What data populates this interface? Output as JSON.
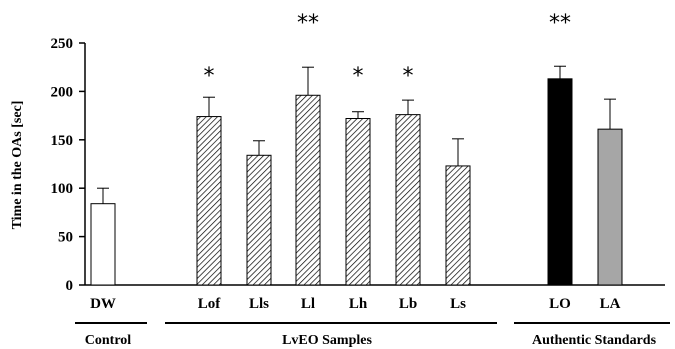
{
  "chart_data": {
    "type": "bar",
    "ylabel": "Time in the OAs [sec]",
    "ylim": [
      0,
      250
    ],
    "yticks": [
      0,
      50,
      100,
      150,
      200,
      250
    ],
    "grid": false,
    "categories": [
      "DW",
      "Lof",
      "Lls",
      "Ll",
      "Lh",
      "Lb",
      "Ls",
      "LO",
      "LA"
    ],
    "values": [
      84,
      174,
      134,
      196,
      172,
      176,
      123,
      213,
      161
    ],
    "errors": [
      16,
      20,
      15,
      29,
      7,
      15,
      28,
      13,
      31
    ],
    "significance": [
      "",
      "*",
      "",
      "**",
      "*",
      "*",
      "",
      "**",
      ""
    ],
    "fills": [
      "white",
      "hatch",
      "hatch",
      "hatch",
      "hatch",
      "hatch",
      "hatch",
      "#000000",
      "#a6a6a6"
    ],
    "groups": [
      {
        "label": "Control",
        "members": [
          "DW"
        ]
      },
      {
        "label": "LvEO  Samples",
        "members": [
          "Lof",
          "Lls",
          "Ll",
          "Lh",
          "Lb",
          "Ls"
        ]
      },
      {
        "label": "Authentic Standards",
        "members": [
          "LO",
          "LA"
        ]
      }
    ]
  }
}
